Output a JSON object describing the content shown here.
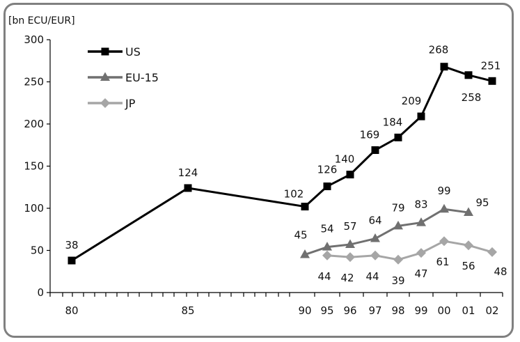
{
  "chart_data": {
    "type": "line",
    "ylabel": "[bn ECU/EUR]",
    "ylim": [
      0,
      300
    ],
    "yticks": [
      "0",
      "50",
      "100",
      "150",
      "200",
      "250",
      "300"
    ],
    "x_labels": [
      "80",
      "85",
      "90",
      "95",
      "96",
      "97",
      "98",
      "99",
      "00",
      "01",
      "02"
    ],
    "legend_position": "top-left",
    "series": [
      {
        "name": "US",
        "color": "#000000",
        "marker": "square",
        "values": [
          38,
          124,
          102,
          126,
          140,
          169,
          184,
          209,
          268,
          258,
          251
        ],
        "labels": [
          "38",
          "124",
          "102",
          "126",
          "140",
          "169",
          "184",
          "209",
          "268",
          "258",
          "251"
        ]
      },
      {
        "name": "EU-15",
        "color": "#707070",
        "marker": "triangle",
        "values": [
          null,
          null,
          45,
          54,
          57,
          64,
          79,
          83,
          99,
          95,
          null
        ],
        "labels": [
          null,
          null,
          "45",
          "54",
          "57",
          "64",
          "79",
          "83",
          "99",
          "95",
          null
        ]
      },
      {
        "name": "JP",
        "color": "#a6a6a6",
        "marker": "diamond",
        "values": [
          null,
          null,
          null,
          44,
          42,
          44,
          39,
          47,
          61,
          56,
          48
        ],
        "labels": [
          null,
          null,
          null,
          "44",
          "42",
          "44",
          "39",
          "47",
          "61",
          "56",
          "48"
        ]
      }
    ]
  }
}
